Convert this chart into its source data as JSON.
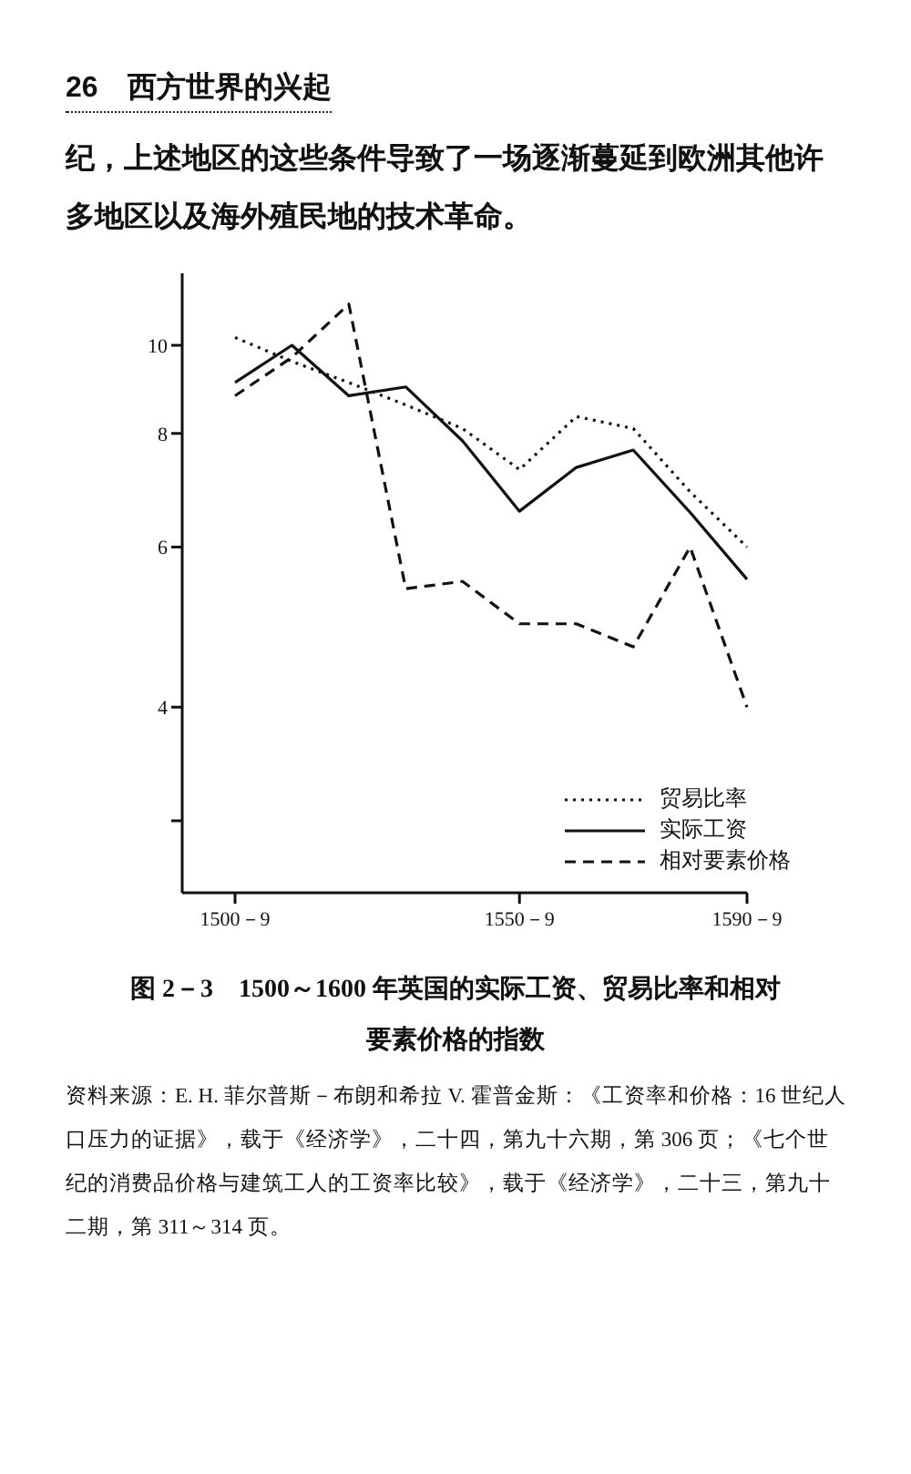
{
  "chart_data": {
    "type": "line",
    "title": "图 2－3　1500～1600 年英国的实际工资、贸易比率和相对要素价格的指数",
    "annotations": [
      "26　西方世界的兴起",
      "纪，上述地区的这些条件导致了一场逐渐蔓延到欧洲其他许多地区以及海外殖民地的技术革命。",
      "资料来源：E. H. 菲尔普斯－布朗和希拉 V. 霍普金斯：《工资率和价格：16 世纪人口压力的证据》，载于《经济学》，二十四，第九十六期，第 306 页；《七个世纪的消费品价格与建筑工人的工资率比较》，载于《经济学》，二十三，第九十二期，第 311～314 页。"
    ],
    "categories": [
      "1500－9",
      null,
      null,
      null,
      null,
      "1550－9",
      null,
      null,
      null,
      "1590－9"
    ],
    "ylim": [
      2.5,
      12
    ],
    "yticks": [
      {
        "value": 3,
        "label": null
      },
      4,
      6,
      8,
      10
    ],
    "log": true,
    "legend": "bottom right",
    "marker": "none",
    "series": [
      {
        "name": "贸易比率",
        "color": "#111111",
        "line_style": "dotted",
        "values": [
          10.2,
          9.6,
          9.1,
          8.6,
          8.1,
          7.3,
          8.35,
          8.1,
          6.9,
          6.0
        ]
      },
      {
        "name": "实际工资",
        "color": "#111111",
        "line_style": "solid",
        "values": [
          9.1,
          10.0,
          8.8,
          9.0,
          7.85,
          6.57,
          7.34,
          7.67,
          6.55,
          5.53
        ]
      },
      {
        "name": "相对要素价格",
        "color": "#111111",
        "line_style": "dashed",
        "values": [
          8.8,
          9.7,
          11.1,
          5.4,
          5.5,
          4.94,
          4.94,
          4.66,
          6.0,
          4.0
        ]
      }
    ]
  }
}
